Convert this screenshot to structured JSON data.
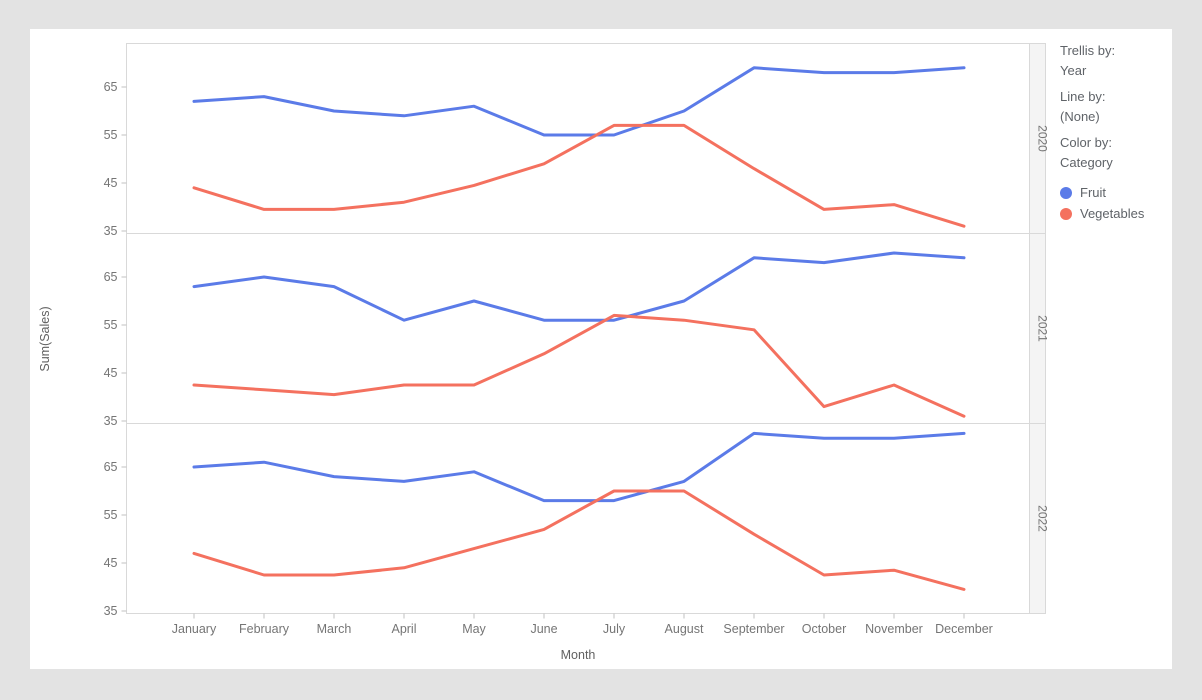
{
  "chart_data": {
    "type": "line",
    "trellis_by": "Year",
    "x_categories": [
      "January",
      "February",
      "March",
      "April",
      "May",
      "June",
      "July",
      "August",
      "September",
      "October",
      "November",
      "December"
    ],
    "xlabel": "Month",
    "ylabel": "Sum(Sales)",
    "y_ticks": [
      65,
      55,
      45,
      35
    ],
    "ylim": [
      34,
      74
    ],
    "grid": false,
    "legend_position": "right",
    "panels": [
      {
        "label": "2020",
        "series": [
          {
            "name": "Fruit",
            "color": "#5b7be8",
            "values": [
              62,
              63,
              60,
              59,
              61,
              55,
              55,
              60,
              69,
              68,
              68,
              69
            ]
          },
          {
            "name": "Vegetables",
            "color": "#f4715f",
            "values": [
              44,
              39.5,
              39.5,
              41,
              44.5,
              49,
              57,
              57,
              48,
              39.5,
              40.5,
              36
            ]
          }
        ]
      },
      {
        "label": "2021",
        "series": [
          {
            "name": "Fruit",
            "color": "#5b7be8",
            "values": [
              63,
              65,
              63,
              56,
              60,
              56,
              56,
              60,
              69,
              68,
              70,
              69
            ]
          },
          {
            "name": "Vegetables",
            "color": "#f4715f",
            "values": [
              42.5,
              41.5,
              40.5,
              42.5,
              42.5,
              49,
              57,
              56,
              54,
              38,
              42.5,
              36
            ]
          }
        ]
      },
      {
        "label": "2022",
        "series": [
          {
            "name": "Fruit",
            "color": "#5b7be8",
            "values": [
              65,
              66,
              63,
              62,
              64,
              58,
              58,
              62,
              72,
              71,
              71,
              72
            ]
          },
          {
            "name": "Vegetables",
            "color": "#f4715f",
            "values": [
              47,
              42.5,
              42.5,
              44,
              48,
              52,
              60,
              60,
              51,
              42.5,
              43.5,
              39.5
            ]
          }
        ]
      }
    ]
  },
  "settings_panel": {
    "trellis_by_label": "Trellis by:",
    "trellis_by_value": "Year",
    "line_by_label": "Line by:",
    "line_by_value": "(None)",
    "color_by_label": "Color by:",
    "color_by_value": "Category",
    "legend": [
      {
        "label": "Fruit",
        "color": "#5b7be8"
      },
      {
        "label": "Vegetables",
        "color": "#f4715f"
      }
    ]
  },
  "colors": {
    "fruit": "#5b7be8",
    "vegetables": "#f4715f",
    "page_bg": "#e3e3e3",
    "card_bg": "#ffffff",
    "plot_border": "#d9d9d9",
    "panel_strip_bg": "#f4f4f4",
    "axis_text": "#757575",
    "axis_title_text": "#616161"
  }
}
